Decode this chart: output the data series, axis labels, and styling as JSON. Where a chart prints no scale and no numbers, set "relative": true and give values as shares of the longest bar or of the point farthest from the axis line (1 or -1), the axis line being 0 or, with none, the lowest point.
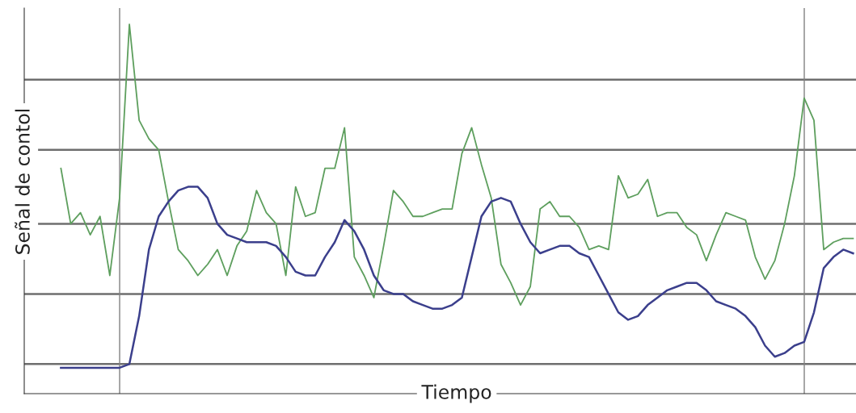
{
  "chart_data": {
    "type": "line",
    "relative": true,
    "xlabel": "Tiempo",
    "ylabel": "Señal de contol",
    "categories": [
      null,
      null,
      null,
      null,
      null,
      null,
      null,
      null,
      null,
      null,
      null,
      null,
      null,
      null,
      null,
      null,
      null,
      null,
      null,
      null,
      null,
      null,
      null,
      null,
      null,
      null,
      null,
      null,
      null,
      null,
      null,
      null,
      null,
      null,
      null,
      null,
      null,
      null,
      null,
      null,
      null,
      null,
      null,
      null,
      null,
      null,
      null,
      null,
      null,
      null,
      null,
      null,
      null,
      null,
      null,
      null,
      null,
      null,
      null,
      null,
      null,
      null,
      null,
      null,
      null,
      null,
      null,
      null,
      null,
      null,
      null,
      null,
      null,
      null,
      null,
      null,
      null,
      null,
      null,
      null,
      null,
      null
    ],
    "series": [
      {
        "color": "#5e9f5e",
        "values": [
          0.61,
          0.46,
          0.49,
          0.43,
          0.48,
          0.32,
          0.53,
          1.0,
          0.74,
          0.69,
          0.66,
          0.52,
          0.39,
          0.36,
          0.32,
          0.35,
          0.39,
          0.32,
          0.4,
          0.44,
          0.55,
          0.49,
          0.46,
          0.32,
          0.56,
          0.48,
          0.49,
          0.61,
          0.61,
          0.72,
          0.37,
          0.32,
          0.26,
          0.4,
          0.55,
          0.52,
          0.48,
          0.48,
          0.49,
          0.5,
          0.5,
          0.65,
          0.72,
          0.62,
          0.53,
          0.35,
          0.3,
          0.24,
          0.29,
          0.5,
          0.52,
          0.48,
          0.48,
          0.45,
          0.39,
          0.4,
          0.39,
          0.59,
          0.53,
          0.54,
          0.58,
          0.48,
          0.49,
          0.49,
          0.45,
          0.43,
          0.36,
          0.43,
          0.49,
          0.48,
          0.47,
          0.37,
          0.31,
          0.36,
          0.46,
          0.59,
          0.8,
          0.74,
          0.39,
          0.41,
          0.42,
          0.42
        ]
      },
      {
        "color": "#3b3f8c",
        "values": [
          0.07,
          0.07,
          0.07,
          0.07,
          0.07,
          0.07,
          0.07,
          0.08,
          0.21,
          0.39,
          0.48,
          0.52,
          0.55,
          0.56,
          0.56,
          0.53,
          0.46,
          0.43,
          0.42,
          0.41,
          0.41,
          0.41,
          0.4,
          0.37,
          0.33,
          0.32,
          0.32,
          0.37,
          0.41,
          0.47,
          0.44,
          0.39,
          0.32,
          0.28,
          0.27,
          0.27,
          0.25,
          0.24,
          0.23,
          0.23,
          0.24,
          0.26,
          0.37,
          0.48,
          0.52,
          0.53,
          0.52,
          0.46,
          0.41,
          0.38,
          0.39,
          0.4,
          0.4,
          0.38,
          0.37,
          0.32,
          0.27,
          0.22,
          0.2,
          0.21,
          0.24,
          0.26,
          0.28,
          0.29,
          0.3,
          0.3,
          0.28,
          0.25,
          0.24,
          0.23,
          0.21,
          0.18,
          0.13,
          0.1,
          0.11,
          0.13,
          0.14,
          0.22,
          0.34,
          0.37,
          0.39,
          0.38
        ]
      }
    ],
    "ref_lines": [
      {
        "axis": "y",
        "value": 0.08,
        "color": "#6e6e6e"
      },
      {
        "axis": "y",
        "value": 0.27,
        "color": "#6e6e6e"
      },
      {
        "axis": "y",
        "value": 0.46,
        "color": "#6e6e6e"
      },
      {
        "axis": "y",
        "value": 0.66,
        "color": "#6e6e6e"
      },
      {
        "axis": "y",
        "value": 0.85,
        "color": "#6e6e6e"
      }
    ],
    "marker": "none",
    "line_style": "solid"
  }
}
